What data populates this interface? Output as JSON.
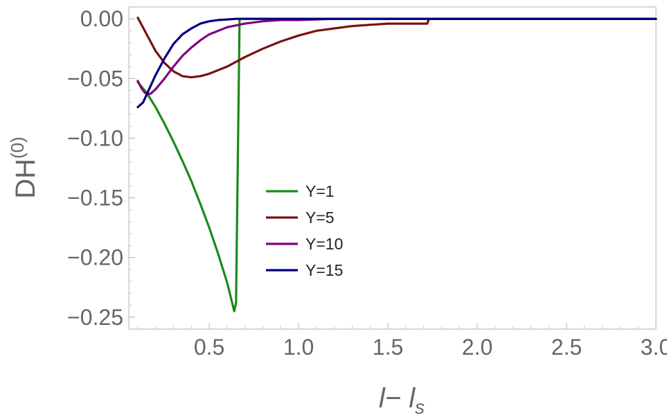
{
  "chart_data": {
    "type": "line",
    "xlim": [
      0.05,
      3.0
    ],
    "ylim": [
      -0.26,
      0.01
    ],
    "x_ticks": [
      {
        "value": 0.5,
        "label": "0.5"
      },
      {
        "value": 1.0,
        "label": "1.0"
      },
      {
        "value": 1.5,
        "label": "1.5"
      },
      {
        "value": 2.0,
        "label": "2.0"
      },
      {
        "value": 2.5,
        "label": "2.5"
      },
      {
        "value": 3.0,
        "label": "3.0"
      }
    ],
    "y_ticks": [
      {
        "value": 0.0,
        "label": "0.00"
      },
      {
        "value": -0.05,
        "label": "−0.05"
      },
      {
        "value": -0.1,
        "label": "−0.10"
      },
      {
        "value": -0.15,
        "label": "−0.15"
      },
      {
        "value": -0.2,
        "label": "−0.20"
      },
      {
        "value": -0.25,
        "label": "−0.25"
      }
    ],
    "xlabel": {
      "main": "l− l",
      "sub": "s"
    },
    "ylabel": {
      "main": "DH",
      "sup": "(0)"
    },
    "grid": false,
    "legend_position": "center",
    "series": [
      {
        "name": "Y=1",
        "color": "#1a8a1a",
        "x": [
          0.1,
          0.15,
          0.2,
          0.25,
          0.3,
          0.35,
          0.4,
          0.45,
          0.5,
          0.55,
          0.6,
          0.64,
          0.65,
          0.67,
          0.8,
          1.0,
          1.5,
          2.0,
          2.5,
          3.0
        ],
        "y": [
          -0.053,
          -0.062,
          -0.074,
          -0.088,
          -0.103,
          -0.119,
          -0.136,
          -0.155,
          -0.175,
          -0.197,
          -0.221,
          -0.245,
          -0.238,
          0.0,
          0.0,
          0.0,
          0.0,
          0.0,
          0.0,
          0.0
        ]
      },
      {
        "name": "Y=5",
        "color": "#7a1010",
        "x": [
          0.1,
          0.15,
          0.2,
          0.25,
          0.3,
          0.35,
          0.4,
          0.45,
          0.5,
          0.6,
          0.7,
          0.8,
          0.9,
          1.0,
          1.1,
          1.2,
          1.3,
          1.4,
          1.5,
          1.6,
          1.7,
          1.72,
          1.73,
          2.0,
          2.5,
          3.0
        ],
        "y": [
          0.001,
          -0.013,
          -0.027,
          -0.037,
          -0.044,
          -0.048,
          -0.049,
          -0.048,
          -0.046,
          -0.04,
          -0.032,
          -0.025,
          -0.019,
          -0.014,
          -0.01,
          -0.008,
          -0.006,
          -0.005,
          -0.004,
          -0.004,
          -0.004,
          -0.004,
          0.0,
          0.0,
          0.0,
          0.0
        ]
      },
      {
        "name": "Y=10",
        "color": "#800080",
        "x": [
          0.1,
          0.12,
          0.14,
          0.17,
          0.2,
          0.25,
          0.3,
          0.35,
          0.4,
          0.45,
          0.5,
          0.6,
          0.7,
          0.8,
          0.9,
          1.0,
          1.2,
          1.5,
          2.0,
          2.5,
          3.0
        ],
        "y": [
          -0.052,
          -0.058,
          -0.062,
          -0.063,
          -0.059,
          -0.05,
          -0.04,
          -0.031,
          -0.024,
          -0.018,
          -0.013,
          -0.007,
          -0.004,
          -0.002,
          -0.001,
          -0.001,
          0.0,
          0.0,
          0.0,
          0.0,
          0.0
        ]
      },
      {
        "name": "Y=15",
        "color": "#000080",
        "x": [
          0.1,
          0.13,
          0.16,
          0.2,
          0.25,
          0.3,
          0.35,
          0.4,
          0.45,
          0.5,
          0.55,
          0.6,
          0.65,
          0.7,
          0.8,
          1.0,
          1.5,
          2.0,
          2.5,
          3.0
        ],
        "y": [
          -0.074,
          -0.07,
          -0.06,
          -0.047,
          -0.033,
          -0.021,
          -0.013,
          -0.008,
          -0.004,
          -0.002,
          -0.001,
          -0.0005,
          0.0,
          0.0,
          0.0,
          0.0,
          0.0,
          0.0,
          0.0,
          0.0
        ]
      }
    ]
  }
}
